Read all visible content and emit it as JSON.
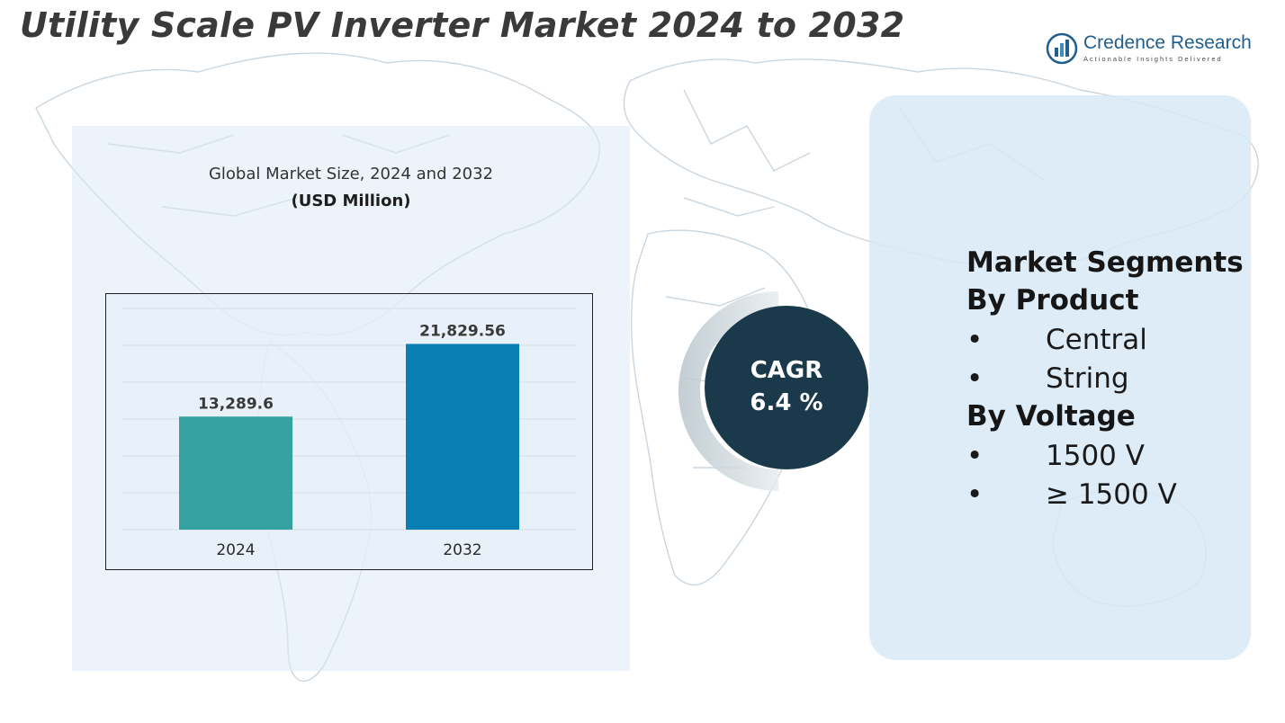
{
  "header": {
    "title": "Utility Scale PV Inverter Market 2024 to 2032"
  },
  "logo": {
    "name": "Credence Research",
    "tagline": "Actionable Insights Delivered",
    "icon": "bar-chart-circle-icon"
  },
  "chart_data": {
    "type": "bar",
    "title": "Global Market Size, 2024 and 2032",
    "subtitle": "(USD Million)",
    "categories": [
      "2024",
      "2032"
    ],
    "values": [
      13289.6,
      21829.56
    ],
    "data_labels": [
      "13,289.6",
      "21,829.56"
    ],
    "xlabel": "",
    "ylabel": "",
    "ylim": [
      0,
      26000
    ],
    "grid": true,
    "legend": "none",
    "colors": [
      "#35a1a1",
      "#0a7fb3"
    ]
  },
  "cagr": {
    "label": "CAGR",
    "value": "6.4 %",
    "color": "#1a3a4c"
  },
  "segments": {
    "heading": "Market Segments",
    "groups": [
      {
        "label": "By Product",
        "items": [
          "Central",
          "String"
        ]
      },
      {
        "label": "By Voltage",
        "items": [
          "1500 V",
          "≥ 1500 V"
        ]
      }
    ],
    "bullet": "•"
  }
}
